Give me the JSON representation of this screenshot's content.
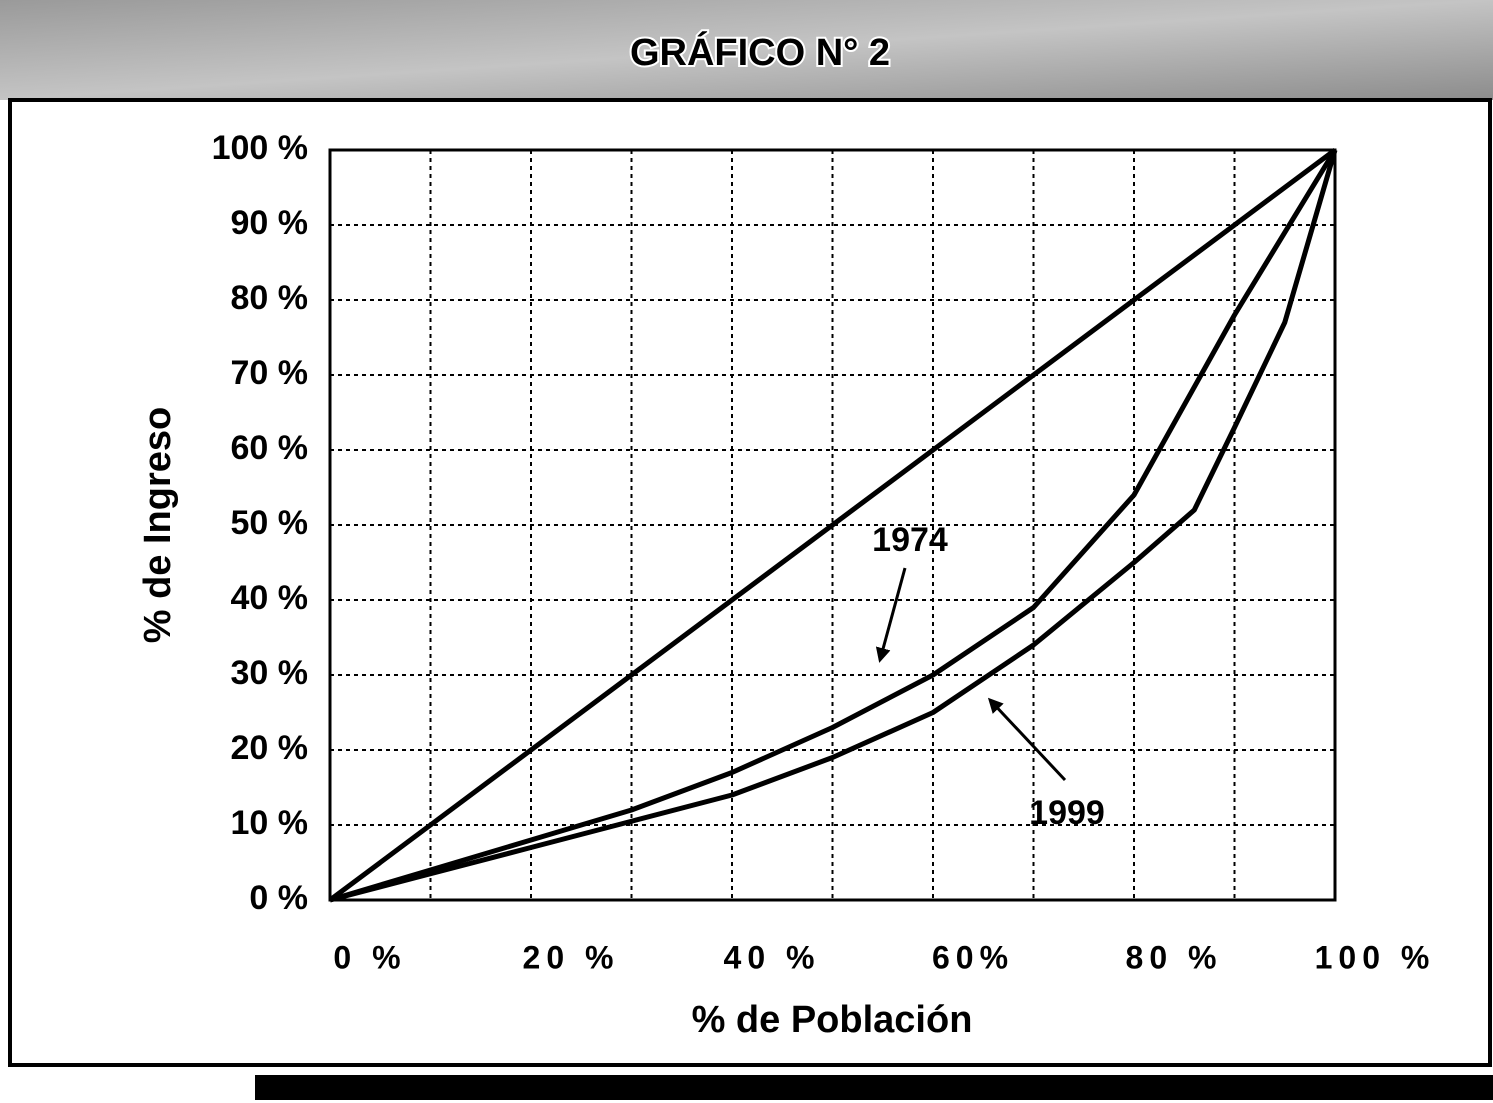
{
  "chart_data": {
    "type": "line",
    "title": "GRÁFICO N° 2",
    "xlabel": "% de Población",
    "ylabel": "% de Ingreso",
    "xlim": [
      0,
      100
    ],
    "ylim": [
      0,
      100
    ],
    "xticks": [
      {
        "value": 0,
        "label": "0 %"
      },
      {
        "value": 20,
        "label": "20 %"
      },
      {
        "value": 40,
        "label": "40 %"
      },
      {
        "value": 60,
        "label": "60%"
      },
      {
        "value": 80,
        "label": "80 %"
      },
      {
        "value": 100,
        "label": "100 %"
      }
    ],
    "xgrid": [
      0,
      10,
      20,
      30,
      40,
      50,
      60,
      70,
      80,
      90,
      100
    ],
    "yticks": [
      {
        "value": 0,
        "label": "0 %"
      },
      {
        "value": 10,
        "label": "10 %"
      },
      {
        "value": 20,
        "label": "20 %"
      },
      {
        "value": 30,
        "label": "30 %"
      },
      {
        "value": 40,
        "label": "40 %"
      },
      {
        "value": 50,
        "label": "50 %"
      },
      {
        "value": 60,
        "label": "60 %"
      },
      {
        "value": 70,
        "label": "70 %"
      },
      {
        "value": 80,
        "label": "80 %"
      },
      {
        "value": 90,
        "label": "90 %"
      },
      {
        "value": 100,
        "label": "100 %"
      }
    ],
    "grid": true,
    "series": [
      {
        "color": "#000000",
        "x": [
          0,
          100
        ],
        "values": [
          0,
          100
        ]
      },
      {
        "name": "1974",
        "color": "#000000",
        "x": [
          0,
          10,
          20,
          30,
          40,
          50,
          60,
          70,
          80,
          90,
          100
        ],
        "values": [
          0,
          4,
          8,
          12,
          17,
          23,
          30,
          39,
          54,
          78,
          100
        ]
      },
      {
        "name": "1999",
        "color": "#000000",
        "x": [
          0,
          10,
          20,
          30,
          40,
          50,
          60,
          70,
          80,
          86,
          90,
          95,
          100
        ],
        "values": [
          0,
          3.5,
          7,
          10.5,
          14,
          19,
          25,
          34,
          45,
          52,
          63,
          77,
          100
        ]
      }
    ]
  }
}
